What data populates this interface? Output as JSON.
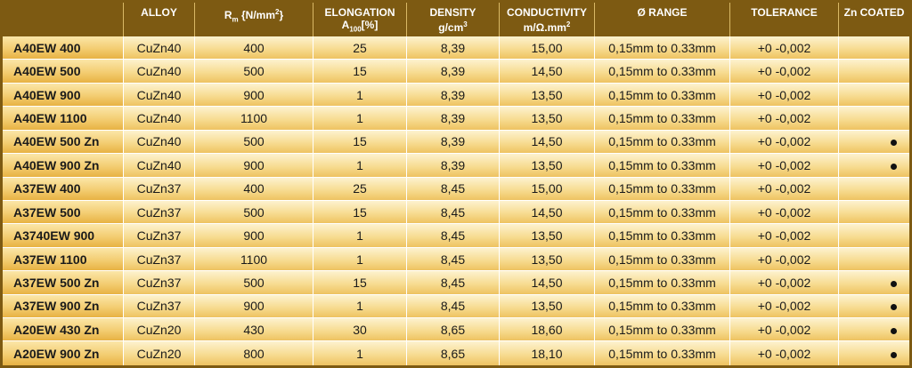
{
  "table": {
    "headers": {
      "name": "",
      "alloy": "ALLOY",
      "rm_main": "R",
      "rm_sub": "m",
      "rm_unit": " {N/mm",
      "rm_sup": "2",
      "rm_close": "}",
      "elongation": "ELONGATION",
      "elong_main": "A",
      "elong_sub": "100",
      "elong_unit": "[%]",
      "density": "DENSITY",
      "density_unit": "g/cm",
      "density_sup": "3",
      "conductivity": "CONDUCTIVITY",
      "conductivity_unit": "m/Ω.mm",
      "conductivity_sup": "2",
      "range": "Ø RANGE",
      "tolerance": "TOLERANCE",
      "zn_coated": "Zn COATED"
    },
    "rows": [
      {
        "name": "A40EW 400",
        "alloy": "CuZn40",
        "rm": "400",
        "elong": "25",
        "density": "8,39",
        "cond": "15,00",
        "range": "0,15mm to 0.33mm",
        "tol": "+0 -0,002",
        "zn": false
      },
      {
        "name": "A40EW 500",
        "alloy": "CuZn40",
        "rm": "500",
        "elong": "15",
        "density": "8,39",
        "cond": "14,50",
        "range": "0,15mm to 0.33mm",
        "tol": "+0 -0,002",
        "zn": false
      },
      {
        "name": "A40EW 900",
        "alloy": "CuZn40",
        "rm": "900",
        "elong": "1",
        "density": "8,39",
        "cond": "13,50",
        "range": "0,15mm to 0.33mm",
        "tol": "+0 -0,002",
        "zn": false
      },
      {
        "name": "A40EW 1100",
        "alloy": "CuZn40",
        "rm": "1100",
        "elong": "1",
        "density": "8,39",
        "cond": "13,50",
        "range": "0,15mm to 0.33mm",
        "tol": "+0 -0,002",
        "zn": false
      },
      {
        "name": "A40EW 500 Zn",
        "alloy": "CuZn40",
        "rm": "500",
        "elong": "15",
        "density": "8,39",
        "cond": "14,50",
        "range": "0,15mm to 0.33mm",
        "tol": "+0 -0,002",
        "zn": true
      },
      {
        "name": "A40EW 900 Zn",
        "alloy": "CuZn40",
        "rm": "900",
        "elong": "1",
        "density": "8,39",
        "cond": "13,50",
        "range": "0,15mm to 0.33mm",
        "tol": "+0 -0,002",
        "zn": true
      },
      {
        "name": "A37EW 400",
        "alloy": "CuZn37",
        "rm": "400",
        "elong": "25",
        "density": "8,45",
        "cond": "15,00",
        "range": "0,15mm to 0.33mm",
        "tol": "+0 -0,002",
        "zn": false
      },
      {
        "name": "A37EW 500",
        "alloy": "CuZn37",
        "rm": "500",
        "elong": "15",
        "density": "8,45",
        "cond": "14,50",
        "range": "0,15mm to 0.33mm",
        "tol": "+0 -0,002",
        "zn": false
      },
      {
        "name": "A3740EW 900",
        "alloy": "CuZn37",
        "rm": "900",
        "elong": "1",
        "density": "8,45",
        "cond": "13,50",
        "range": "0,15mm to 0.33mm",
        "tol": "+0 -0,002",
        "zn": false
      },
      {
        "name": "A37EW 1100",
        "alloy": "CuZn37",
        "rm": "1100",
        "elong": "1",
        "density": "8,45",
        "cond": "13,50",
        "range": "0,15mm to 0.33mm",
        "tol": "+0 -0,002",
        "zn": false
      },
      {
        "name": "A37EW 500 Zn",
        "alloy": "CuZn37",
        "rm": "500",
        "elong": "15",
        "density": "8,45",
        "cond": "14,50",
        "range": "0,15mm to 0.33mm",
        "tol": "+0 -0,002",
        "zn": true
      },
      {
        "name": "A37EW 900 Zn",
        "alloy": "CuZn37",
        "rm": "900",
        "elong": "1",
        "density": "8,45",
        "cond": "13,50",
        "range": "0,15mm to 0.33mm",
        "tol": "+0 -0,002",
        "zn": true
      },
      {
        "name": "A20EW 430 Zn",
        "alloy": "CuZn20",
        "rm": "430",
        "elong": "30",
        "density": "8,65",
        "cond": "18,60",
        "range": "0,15mm to 0.33mm",
        "tol": "+0 -0,002",
        "zn": true
      },
      {
        "name": "A20EW 900 Zn",
        "alloy": "CuZn20",
        "rm": "800",
        "elong": "1",
        "density": "8,65",
        "cond": "18,10",
        "range": "0,15mm to 0.33mm",
        "tol": "+0 -0,002",
        "zn": true
      }
    ],
    "colors": {
      "header_bg": "#7d5a12",
      "row_light": "#fdf2cf",
      "row_dark": "#eec361"
    },
    "icons": {
      "zn_marker": "bullet-dot-icon"
    }
  }
}
